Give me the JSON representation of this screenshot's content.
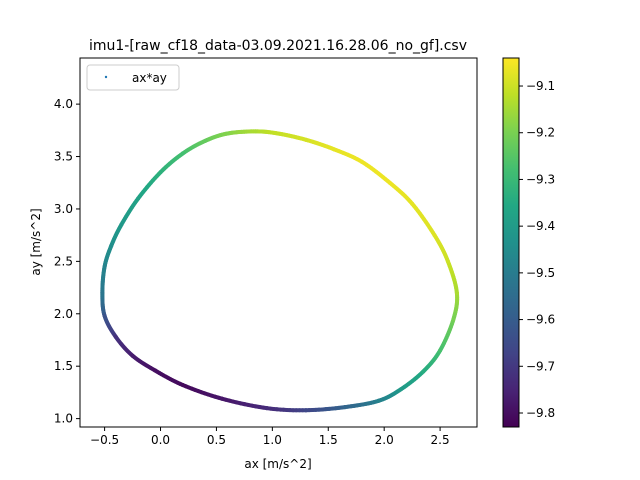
{
  "chart_data": {
    "type": "scatter",
    "title": "imu1-[raw_cf18_data-03.09.2021.16.28.06_no_gf].csv",
    "xlabel": "ax [m/s^2]",
    "ylabel": "ay [m/s^2]",
    "xlim": [
      -0.72,
      2.83
    ],
    "ylim": [
      0.92,
      4.44
    ],
    "x_ticks": [
      -0.5,
      0.0,
      0.5,
      1.0,
      1.5,
      2.0,
      2.5
    ],
    "x_tick_labels": [
      "−0.5",
      "0.0",
      "0.5",
      "1.0",
      "1.5",
      "2.0",
      "2.5"
    ],
    "y_ticks": [
      1.0,
      1.5,
      2.0,
      2.5,
      3.0,
      3.5,
      4.0
    ],
    "y_tick_labels": [
      "1.0",
      "1.5",
      "2.0",
      "2.5",
      "3.0",
      "3.5",
      "4.0"
    ],
    "grid": false,
    "legend": {
      "placement": "top-left",
      "entries": [
        "ax*ay"
      ]
    },
    "colorbar": {
      "colormap": "viridis",
      "range": [
        -9.83,
        -9.04
      ],
      "ticks": [
        -9.8,
        -9.7,
        -9.6,
        -9.5,
        -9.4,
        -9.3,
        -9.2,
        -9.1
      ],
      "tick_labels": [
        "−9.8",
        "−9.7",
        "−9.6",
        "−9.5",
        "−9.4",
        "−9.3",
        "−9.2",
        "−9.1"
      ]
    },
    "series": [
      {
        "name": "ax*ay",
        "points": [
          {
            "x": -0.52,
            "y": 2.2,
            "c": -9.52
          },
          {
            "x": -0.5,
            "y": 2.45,
            "c": -9.48
          },
          {
            "x": -0.44,
            "y": 2.65,
            "c": -9.44
          },
          {
            "x": -0.35,
            "y": 2.85,
            "c": -9.41
          },
          {
            "x": -0.2,
            "y": 3.1,
            "c": -9.38
          },
          {
            "x": 0.0,
            "y": 3.35,
            "c": -9.33
          },
          {
            "x": 0.2,
            "y": 3.53,
            "c": -9.28
          },
          {
            "x": 0.4,
            "y": 3.65,
            "c": -9.23
          },
          {
            "x": 0.6,
            "y": 3.72,
            "c": -9.19
          },
          {
            "x": 0.85,
            "y": 3.74,
            "c": -9.14
          },
          {
            "x": 1.05,
            "y": 3.72,
            "c": -9.11
          },
          {
            "x": 1.3,
            "y": 3.66,
            "c": -9.09
          },
          {
            "x": 1.55,
            "y": 3.57,
            "c": -9.07
          },
          {
            "x": 1.8,
            "y": 3.45,
            "c": -9.06
          },
          {
            "x": 2.05,
            "y": 3.25,
            "c": -9.06
          },
          {
            "x": 2.25,
            "y": 3.05,
            "c": -9.07
          },
          {
            "x": 2.45,
            "y": 2.75,
            "c": -9.08
          },
          {
            "x": 2.57,
            "y": 2.5,
            "c": -9.1
          },
          {
            "x": 2.65,
            "y": 2.2,
            "c": -9.14
          },
          {
            "x": 2.62,
            "y": 1.95,
            "c": -9.2
          },
          {
            "x": 2.5,
            "y": 1.65,
            "c": -9.27
          },
          {
            "x": 2.35,
            "y": 1.45,
            "c": -9.34
          },
          {
            "x": 2.15,
            "y": 1.28,
            "c": -9.4
          },
          {
            "x": 1.95,
            "y": 1.17,
            "c": -9.48
          },
          {
            "x": 1.65,
            "y": 1.11,
            "c": -9.57
          },
          {
            "x": 1.3,
            "y": 1.08,
            "c": -9.66
          },
          {
            "x": 0.95,
            "y": 1.1,
            "c": -9.73
          },
          {
            "x": 0.55,
            "y": 1.19,
            "c": -9.78
          },
          {
            "x": 0.2,
            "y": 1.32,
            "c": -9.81
          },
          {
            "x": -0.05,
            "y": 1.46,
            "c": -9.8
          },
          {
            "x": -0.25,
            "y": 1.6,
            "c": -9.77
          },
          {
            "x": -0.4,
            "y": 1.78,
            "c": -9.72
          },
          {
            "x": -0.5,
            "y": 1.98,
            "c": -9.63
          }
        ]
      }
    ]
  }
}
